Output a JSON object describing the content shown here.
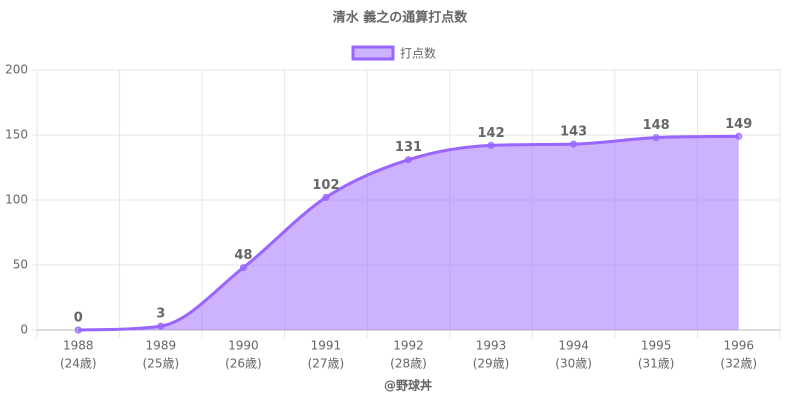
{
  "chart_data": {
    "type": "area",
    "title": "清水 義之の通算打点数",
    "categories": [
      [
        "1988",
        "(24歳)"
      ],
      [
        "1989",
        "(25歳)"
      ],
      [
        "1990",
        "(26歳)"
      ],
      [
        "1991",
        "(27歳)"
      ],
      [
        "1992",
        "(28歳)"
      ],
      [
        "1993",
        "(29歳)"
      ],
      [
        "1994",
        "(30歳)"
      ],
      [
        "1995",
        "(31歳)"
      ],
      [
        "1996",
        "(32歳)"
      ]
    ],
    "series": [
      {
        "name": "打点数",
        "color": "#9966ff",
        "values": [
          0,
          3,
          48,
          102,
          131,
          142,
          143,
          148,
          149
        ]
      }
    ],
    "x_label": "@野球丼",
    "ylim": [
      0,
      200
    ],
    "yticks": [
      0,
      50,
      100,
      150,
      200
    ],
    "grid": true,
    "legend": "top"
  }
}
